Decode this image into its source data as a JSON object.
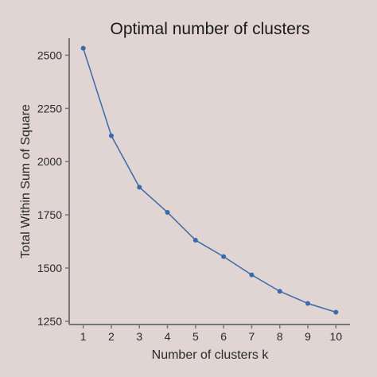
{
  "chart_data": {
    "type": "line",
    "title": "Optimal number of clusters",
    "xlabel": "Number of clusters k",
    "ylabel": "Total Within Sum of Square",
    "categories": [
      "1",
      "2",
      "3",
      "4",
      "5",
      "6",
      "7",
      "8",
      "9",
      "10"
    ],
    "x": [
      1,
      2,
      3,
      4,
      5,
      6,
      7,
      8,
      9,
      10
    ],
    "values": [
      2533,
      2122,
      1880,
      1762,
      1631,
      1554,
      1468,
      1391,
      1334,
      1293
    ],
    "yticks": [
      1250,
      1500,
      1750,
      2000,
      2250,
      2500
    ],
    "xlim": [
      0.5,
      10.5
    ],
    "ylim": [
      1235,
      2580
    ],
    "grid": false,
    "colors": {
      "series": "#3a6aa8",
      "background": "#e0d5d2"
    }
  }
}
